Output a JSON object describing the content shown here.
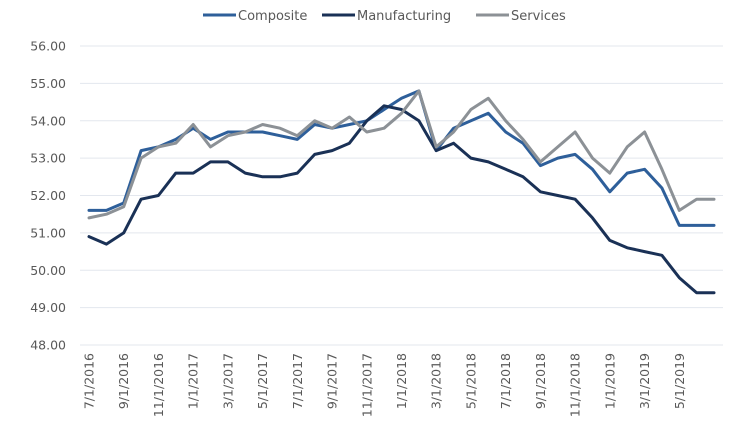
{
  "chart_data": {
    "type": "line",
    "title": "",
    "xlabel": "",
    "ylabel": "",
    "ylim": [
      48,
      56
    ],
    "yticks": [
      "48.00",
      "49.00",
      "50.00",
      "51.00",
      "52.00",
      "53.00",
      "54.00",
      "55.00",
      "56.00"
    ],
    "grid": true,
    "legend_position": "top-center",
    "x": [
      "7/1/2016",
      "8/1/2016",
      "9/1/2016",
      "10/1/2016",
      "11/1/2016",
      "12/1/2016",
      "1/1/2017",
      "2/1/2017",
      "3/1/2017",
      "4/1/2017",
      "5/1/2017",
      "6/1/2017",
      "7/1/2017",
      "8/1/2017",
      "9/1/2017",
      "10/1/2017",
      "11/1/2017",
      "12/1/2017",
      "1/1/2018",
      "2/1/2018",
      "3/1/2018",
      "4/1/2018",
      "5/1/2018",
      "6/1/2018",
      "7/1/2018",
      "8/1/2018",
      "9/1/2018",
      "10/1/2018",
      "11/1/2018",
      "12/1/2018",
      "1/1/2019",
      "2/1/2019",
      "3/1/2019",
      "4/1/2019",
      "5/1/2019",
      "6/1/2019",
      "7/1/2019"
    ],
    "xtick_labels": [
      "7/1/2016",
      "9/1/2016",
      "11/1/2016",
      "1/1/2017",
      "3/1/2017",
      "5/1/2017",
      "7/1/2017",
      "9/1/2017",
      "11/1/2017",
      "1/1/2018",
      "3/1/2018",
      "5/1/2018",
      "7/1/2018",
      "9/1/2018",
      "11/1/2018",
      "1/1/2019",
      "3/1/2019",
      "5/1/2019"
    ],
    "series": [
      {
        "name": "Composite",
        "color": "#2e5f9a",
        "values": [
          51.6,
          51.6,
          51.8,
          53.2,
          53.3,
          53.5,
          53.8,
          53.5,
          53.7,
          53.7,
          53.7,
          53.6,
          53.5,
          53.9,
          53.8,
          53.9,
          54.0,
          54.3,
          54.6,
          54.8,
          53.2,
          53.8,
          54.0,
          54.2,
          53.7,
          53.4,
          52.8,
          53.0,
          53.1,
          52.7,
          52.1,
          52.6,
          52.7,
          52.2,
          51.2,
          51.2,
          51.2
        ]
      },
      {
        "name": "Manufacturing",
        "color": "#1a3156",
        "values": [
          50.9,
          50.7,
          51.0,
          51.9,
          52.0,
          52.6,
          52.6,
          52.9,
          52.9,
          52.6,
          52.5,
          52.5,
          52.6,
          53.1,
          53.2,
          53.4,
          54.0,
          54.4,
          54.3,
          54.0,
          53.2,
          53.4,
          53.0,
          52.9,
          52.7,
          52.5,
          52.1,
          52.0,
          51.9,
          51.4,
          50.8,
          50.6,
          50.5,
          50.4,
          49.8,
          49.4,
          49.4
        ]
      },
      {
        "name": "Services",
        "color": "#8c9196",
        "values": [
          51.4,
          51.5,
          51.7,
          53.0,
          53.3,
          53.4,
          53.9,
          53.3,
          53.6,
          53.7,
          53.9,
          53.8,
          53.6,
          54.0,
          53.8,
          54.1,
          53.7,
          53.8,
          54.2,
          54.8,
          53.3,
          53.7,
          54.3,
          54.6,
          54.0,
          53.5,
          52.9,
          53.3,
          53.7,
          53.0,
          52.6,
          53.3,
          53.7,
          52.7,
          51.6,
          51.9,
          51.9
        ]
      }
    ]
  }
}
